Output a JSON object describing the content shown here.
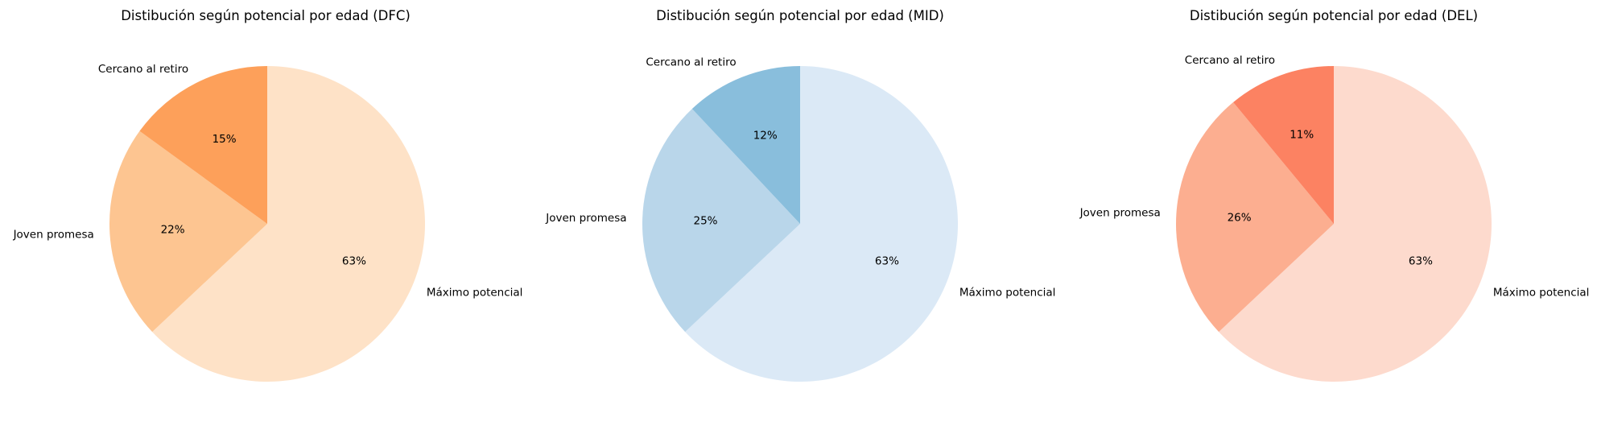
{
  "chart_data": [
    {
      "type": "pie",
      "title": "Distibución según potencial por edad (DFC)",
      "labels": [
        "Máximo potencial",
        "Joven promesa",
        "Cercano al retiro"
      ],
      "values": [
        63,
        22,
        15
      ],
      "value_labels": [
        "63%",
        "22%",
        "15%"
      ],
      "colors": [
        "#fee2c7",
        "#fdc591",
        "#fda05a"
      ],
      "start_angle_deg": 90,
      "direction": "clockwise"
    },
    {
      "type": "pie",
      "title": "Distibución según potencial por edad (MID)",
      "labels": [
        "Máximo potencial",
        "Joven promesa",
        "Cercano al retiro"
      ],
      "values": [
        63,
        25,
        12
      ],
      "value_labels": [
        "63%",
        "25%",
        "12%"
      ],
      "colors": [
        "#dbe9f6",
        "#b9d6ea",
        "#89bedc"
      ],
      "start_angle_deg": 90,
      "direction": "clockwise"
    },
    {
      "type": "pie",
      "title": "Distibución según potencial por edad (DEL)",
      "labels": [
        "Máximo potencial",
        "Joven promesa",
        "Cercano al retiro"
      ],
      "values": [
        63,
        26,
        11
      ],
      "value_labels": [
        "63%",
        "26%",
        "11%"
      ],
      "colors": [
        "#fddacd",
        "#fcae90",
        "#fc8262"
      ],
      "start_angle_deg": 90,
      "direction": "clockwise"
    }
  ]
}
